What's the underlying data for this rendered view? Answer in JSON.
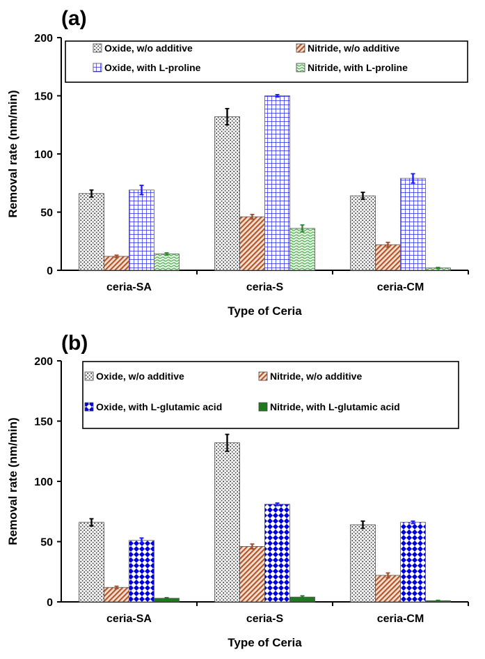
{
  "chart_data": [
    {
      "type": "bar",
      "panel_label": "(a)",
      "categories": [
        "ceria-SA",
        "ceria-S",
        "ceria-CM"
      ],
      "xlabel": "Type of Ceria",
      "ylabel": "Removal rate (nm/min)",
      "ylim": [
        0,
        200
      ],
      "yticks": [
        0,
        50,
        100,
        150,
        200
      ],
      "legend_position": "top",
      "series": [
        {
          "name": "Oxide, w/o additive",
          "values": [
            66,
            132,
            64
          ],
          "errors": [
            3,
            7,
            3
          ],
          "color": "#d9d9d9",
          "pattern": "dots-gray"
        },
        {
          "name": "Nitride, w/o additive",
          "values": [
            12,
            46,
            22
          ],
          "errors": [
            1,
            2,
            2
          ],
          "color": "#e8b89a",
          "pattern": "diag-brown"
        },
        {
          "name": "Oxide, with L-proline",
          "values": [
            69,
            150,
            79
          ],
          "errors": [
            4,
            1,
            4
          ],
          "color": "#3333ff",
          "pattern": "grid-blue"
        },
        {
          "name": "Nitride, with L-proline",
          "values": [
            14,
            36,
            2
          ],
          "errors": [
            1,
            3,
            0.5
          ],
          "color": "#66bb66",
          "pattern": "wave-green"
        }
      ]
    },
    {
      "type": "bar",
      "panel_label": "(b)",
      "categories": [
        "ceria-SA",
        "ceria-S",
        "ceria-CM"
      ],
      "xlabel": "Type of Ceria",
      "ylabel": "Removal rate (nm/min)",
      "ylim": [
        0,
        200
      ],
      "yticks": [
        0,
        50,
        100,
        150,
        200
      ],
      "legend_position": "top",
      "series": [
        {
          "name": "Oxide, w/o additive",
          "values": [
            66,
            132,
            64
          ],
          "errors": [
            3,
            7,
            3
          ],
          "color": "#d9d9d9",
          "pattern": "dots-gray"
        },
        {
          "name": "Nitride, w/o additive",
          "values": [
            12,
            46,
            22
          ],
          "errors": [
            1,
            2,
            2
          ],
          "color": "#e8b89a",
          "pattern": "diag-brown"
        },
        {
          "name": "Oxide, with L-glutamic acid",
          "values": [
            51,
            81,
            66
          ],
          "errors": [
            2,
            1,
            1
          ],
          "color": "#0000dd",
          "pattern": "checker-blue"
        },
        {
          "name": "Nitride, with L-glutamic acid",
          "values": [
            3,
            4,
            1
          ],
          "errors": [
            0.5,
            1,
            0.3
          ],
          "color": "#1f7a1f",
          "pattern": "solid-green"
        }
      ]
    }
  ]
}
